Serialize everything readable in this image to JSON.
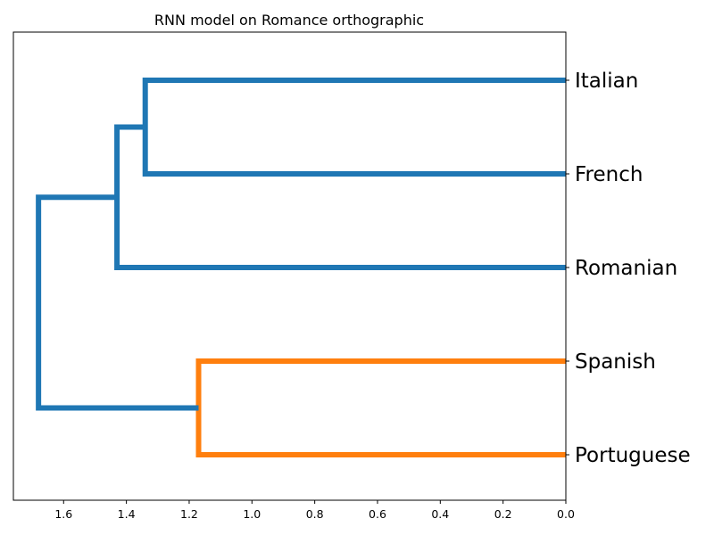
{
  "chart_data": {
    "type": "dendrogram",
    "title": "RNN model on Romance orthographic",
    "xlabel": "",
    "ylabel": "",
    "orientation": "right",
    "x_axis": {
      "direction": "reversed",
      "xlim": [
        1.76,
        0.0
      ],
      "ticks": [
        1.6,
        1.4,
        1.2,
        1.0,
        0.8,
        0.6,
        0.4,
        0.2,
        0.0
      ],
      "tick_labels": [
        "1.6",
        "1.4",
        "1.2",
        "1.0",
        "0.8",
        "0.6",
        "0.4",
        "0.2",
        "0.0"
      ]
    },
    "grid": false,
    "legend": "none",
    "leaves": [
      "Italian",
      "French",
      "Romanian",
      "Spanish",
      "Portuguese"
    ],
    "merges": [
      {
        "id": "m1",
        "children": [
          "Italian",
          "French"
        ],
        "height": 1.34,
        "color": "#1f77b4"
      },
      {
        "id": "m2",
        "children": [
          "m1",
          "Romanian"
        ],
        "height": 1.43,
        "color": "#1f77b4"
      },
      {
        "id": "m3",
        "children": [
          "Spanish",
          "Portuguese"
        ],
        "height": 1.17,
        "color": "#ff7f0e"
      },
      {
        "id": "m4",
        "children": [
          "m2",
          "m3"
        ],
        "height": 1.68,
        "color": "#1f77b4"
      }
    ],
    "colors": {
      "cluster_above_threshold": "#1f77b4",
      "cluster_1": "#ff7f0e"
    }
  }
}
